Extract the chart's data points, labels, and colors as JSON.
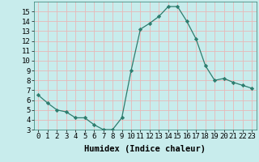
{
  "x": [
    0,
    1,
    2,
    3,
    4,
    5,
    6,
    7,
    8,
    9,
    10,
    11,
    12,
    13,
    14,
    15,
    16,
    17,
    18,
    19,
    20,
    21,
    22,
    23
  ],
  "y": [
    6.5,
    5.7,
    5.0,
    4.8,
    4.2,
    4.2,
    3.5,
    3.0,
    3.0,
    4.2,
    9.0,
    13.2,
    13.8,
    14.5,
    15.5,
    15.5,
    14.0,
    12.2,
    9.5,
    8.0,
    8.2,
    7.8,
    7.5,
    7.2
  ],
  "line_color": "#2d7d6e",
  "marker": "D",
  "marker_size": 2.2,
  "bg_color": "#c8ecec",
  "grid_color": "#e8b8b8",
  "xlabel": "Humidex (Indice chaleur)",
  "xlabel_fontsize": 7.5,
  "tick_fontsize": 6.5,
  "xlim": [
    -0.5,
    23.5
  ],
  "ylim": [
    3,
    16
  ],
  "yticks": [
    3,
    4,
    5,
    6,
    7,
    8,
    9,
    10,
    11,
    12,
    13,
    14,
    15
  ],
  "xticks": [
    0,
    1,
    2,
    3,
    4,
    5,
    6,
    7,
    8,
    9,
    10,
    11,
    12,
    13,
    14,
    15,
    16,
    17,
    18,
    19,
    20,
    21,
    22,
    23
  ]
}
